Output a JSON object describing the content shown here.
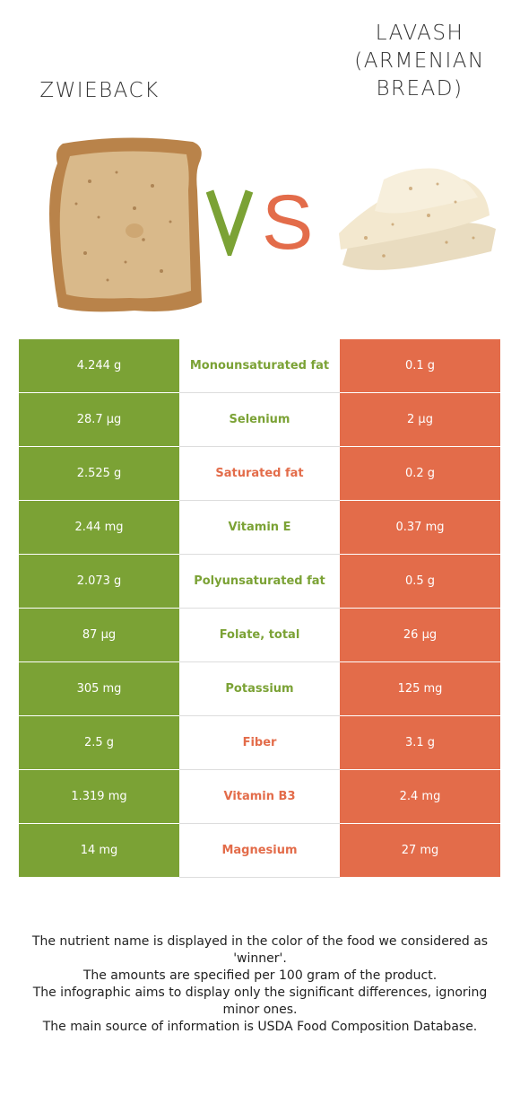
{
  "header": {
    "left_food": "ZWIEBACK",
    "right_food": "LAVASH (ARMENIAN BREAD)",
    "vs_text": "VS"
  },
  "colors": {
    "winner_left": "#7ba235",
    "winner_right": "#e36c4a"
  },
  "rows": [
    {
      "left": "4.244 g",
      "nutrient": "Monounsaturated fat",
      "right": "0.1 g",
      "winner": "left"
    },
    {
      "left": "28.7 µg",
      "nutrient": "Selenium",
      "right": "2 µg",
      "winner": "left"
    },
    {
      "left": "2.525 g",
      "nutrient": "Saturated fat",
      "right": "0.2 g",
      "winner": "right"
    },
    {
      "left": "2.44 mg",
      "nutrient": "Vitamin E",
      "right": "0.37 mg",
      "winner": "left"
    },
    {
      "left": "2.073 g",
      "nutrient": "Polyunsaturated fat",
      "right": "0.5 g",
      "winner": "left"
    },
    {
      "left": "87 µg",
      "nutrient": "Folate, total",
      "right": "26 µg",
      "winner": "left"
    },
    {
      "left": "305 mg",
      "nutrient": "Potassium",
      "right": "125 mg",
      "winner": "left"
    },
    {
      "left": "2.5 g",
      "nutrient": "Fiber",
      "right": "3.1 g",
      "winner": "right"
    },
    {
      "left": "1.319 mg",
      "nutrient": "Vitamin B3",
      "right": "2.4 mg",
      "winner": "right"
    },
    {
      "left": "14 mg",
      "nutrient": "Magnesium",
      "right": "27 mg",
      "winner": "right"
    }
  ],
  "footnotes": [
    "The nutrient name is displayed in the color of the food we considered as 'winner'.",
    "The amounts are specified per 100 gram of the product.",
    "The infographic aims to display only the significant differences, ignoring minor ones.",
    "The main source of information is USDA Food Composition Database."
  ]
}
